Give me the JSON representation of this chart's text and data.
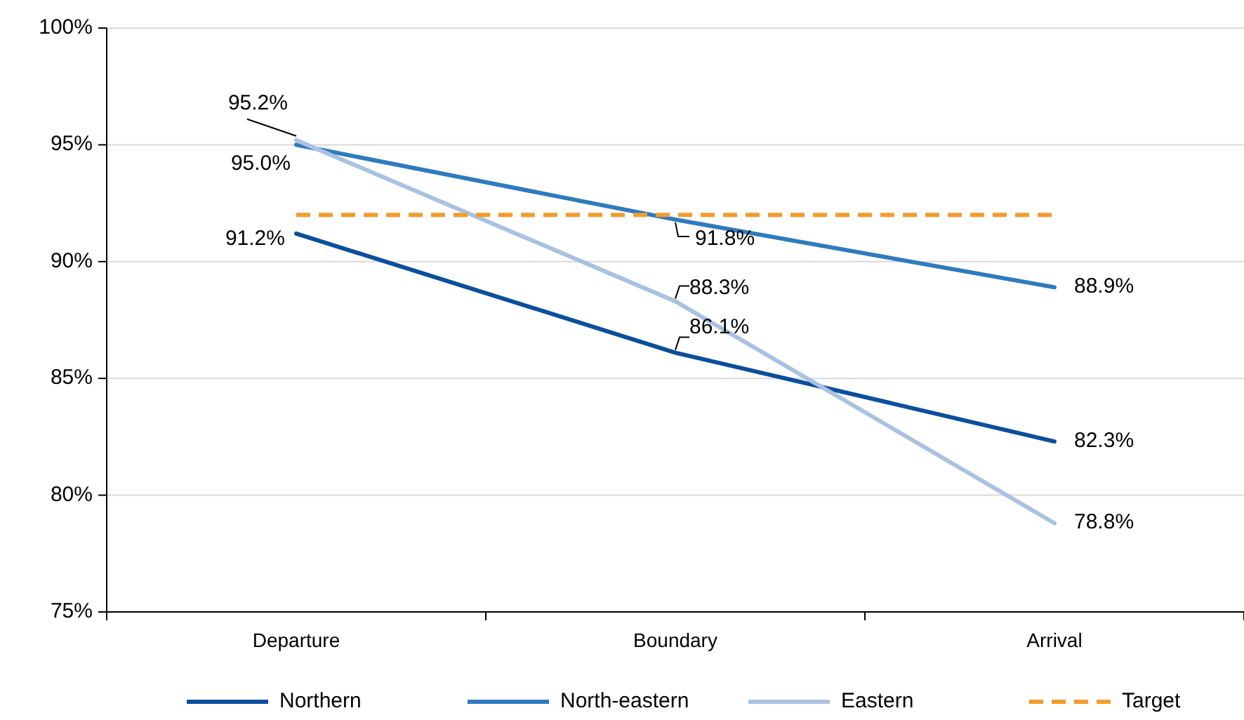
{
  "chart_data": {
    "type": "line",
    "categories": [
      "Departure",
      "Boundary",
      "Arrival"
    ],
    "series": [
      {
        "name": "Northern",
        "color": "#0b4f9c",
        "values": [
          91.2,
          86.1,
          82.3
        ],
        "value_labels": [
          "91.2%",
          "86.1%",
          "82.3%"
        ]
      },
      {
        "name": "North-eastern",
        "color": "#2e7bbf",
        "values": [
          95.0,
          91.8,
          88.9
        ],
        "value_labels": [
          "95.0%",
          "91.8%",
          "88.9%"
        ]
      },
      {
        "name": "Eastern",
        "color": "#a9c1e2",
        "values": [
          95.2,
          88.3,
          78.8
        ],
        "value_labels": [
          "95.2%",
          "88.3%",
          "78.8%"
        ]
      },
      {
        "name": "Target",
        "color": "#f39c2c",
        "values": [
          92,
          92,
          92
        ],
        "line_style": "dashed"
      }
    ],
    "ylim": [
      75,
      100
    ],
    "yticks": [
      {
        "value": 75,
        "label": "75%"
      },
      {
        "value": 80,
        "label": "80%"
      },
      {
        "value": 85,
        "label": "85%"
      },
      {
        "value": 90,
        "label": "90%"
      },
      {
        "value": 95,
        "label": "95%"
      },
      {
        "value": 100,
        "label": "100%"
      }
    ],
    "grid": "y",
    "legend": "bottom",
    "marker": "none",
    "line_style": "solid"
  }
}
